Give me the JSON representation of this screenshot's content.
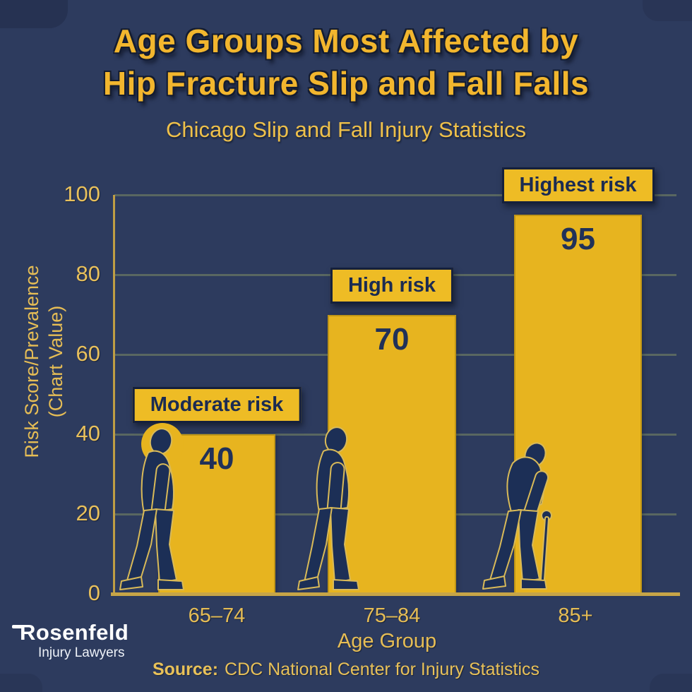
{
  "colors": {
    "background": "#2d3b5e",
    "bar": "#e7b41f",
    "label_box": "#eebc25",
    "axis_gold": "#c7a547",
    "tick_text": "#e6bd55",
    "title_gold": "#f2b62e",
    "dark_navy_text": "#1b2b52",
    "gridline": "#5d6b62",
    "logo_white": "#ffffff"
  },
  "header": {
    "title_line1": "Age Groups Most Affected by",
    "title_line2": "Hip Fracture Slip and Fall Falls",
    "subtitle": "Chicago Slip and Fall Injury Statistics"
  },
  "chart_data": {
    "type": "bar",
    "title": "Age Groups Most Affected by Hip Fracture Slip and Fall Falls",
    "subtitle": "Chicago Slip and Fall Injury Statistics",
    "categories": [
      "65–74",
      "75–84",
      "85+"
    ],
    "values": [
      40,
      70,
      95
    ],
    "bar_labels": [
      "Moderate risk",
      "High risk",
      "Highest risk"
    ],
    "xlabel": "Age Group",
    "ylabel": "Risk Score/Prevalence (Chart Value)",
    "ylabel_lines": [
      "Risk Score/Prevalence",
      "(Chart Value)"
    ],
    "yticks": [
      0,
      20,
      40,
      60,
      80,
      100
    ],
    "ylim": [
      0,
      100
    ],
    "grid": "horizontal",
    "legend_position": "none",
    "bar_color": "#e7b41f",
    "annotations": "dark silhouettes of elderly walking figures in front of each bar; oldest figure uses a cane"
  },
  "footer": {
    "logo_line1": "Rosenfeld",
    "logo_line2": "Injury Lawyers",
    "source_prefix": "Source:",
    "source_text": "CDC National Center for Injury Statistics"
  }
}
